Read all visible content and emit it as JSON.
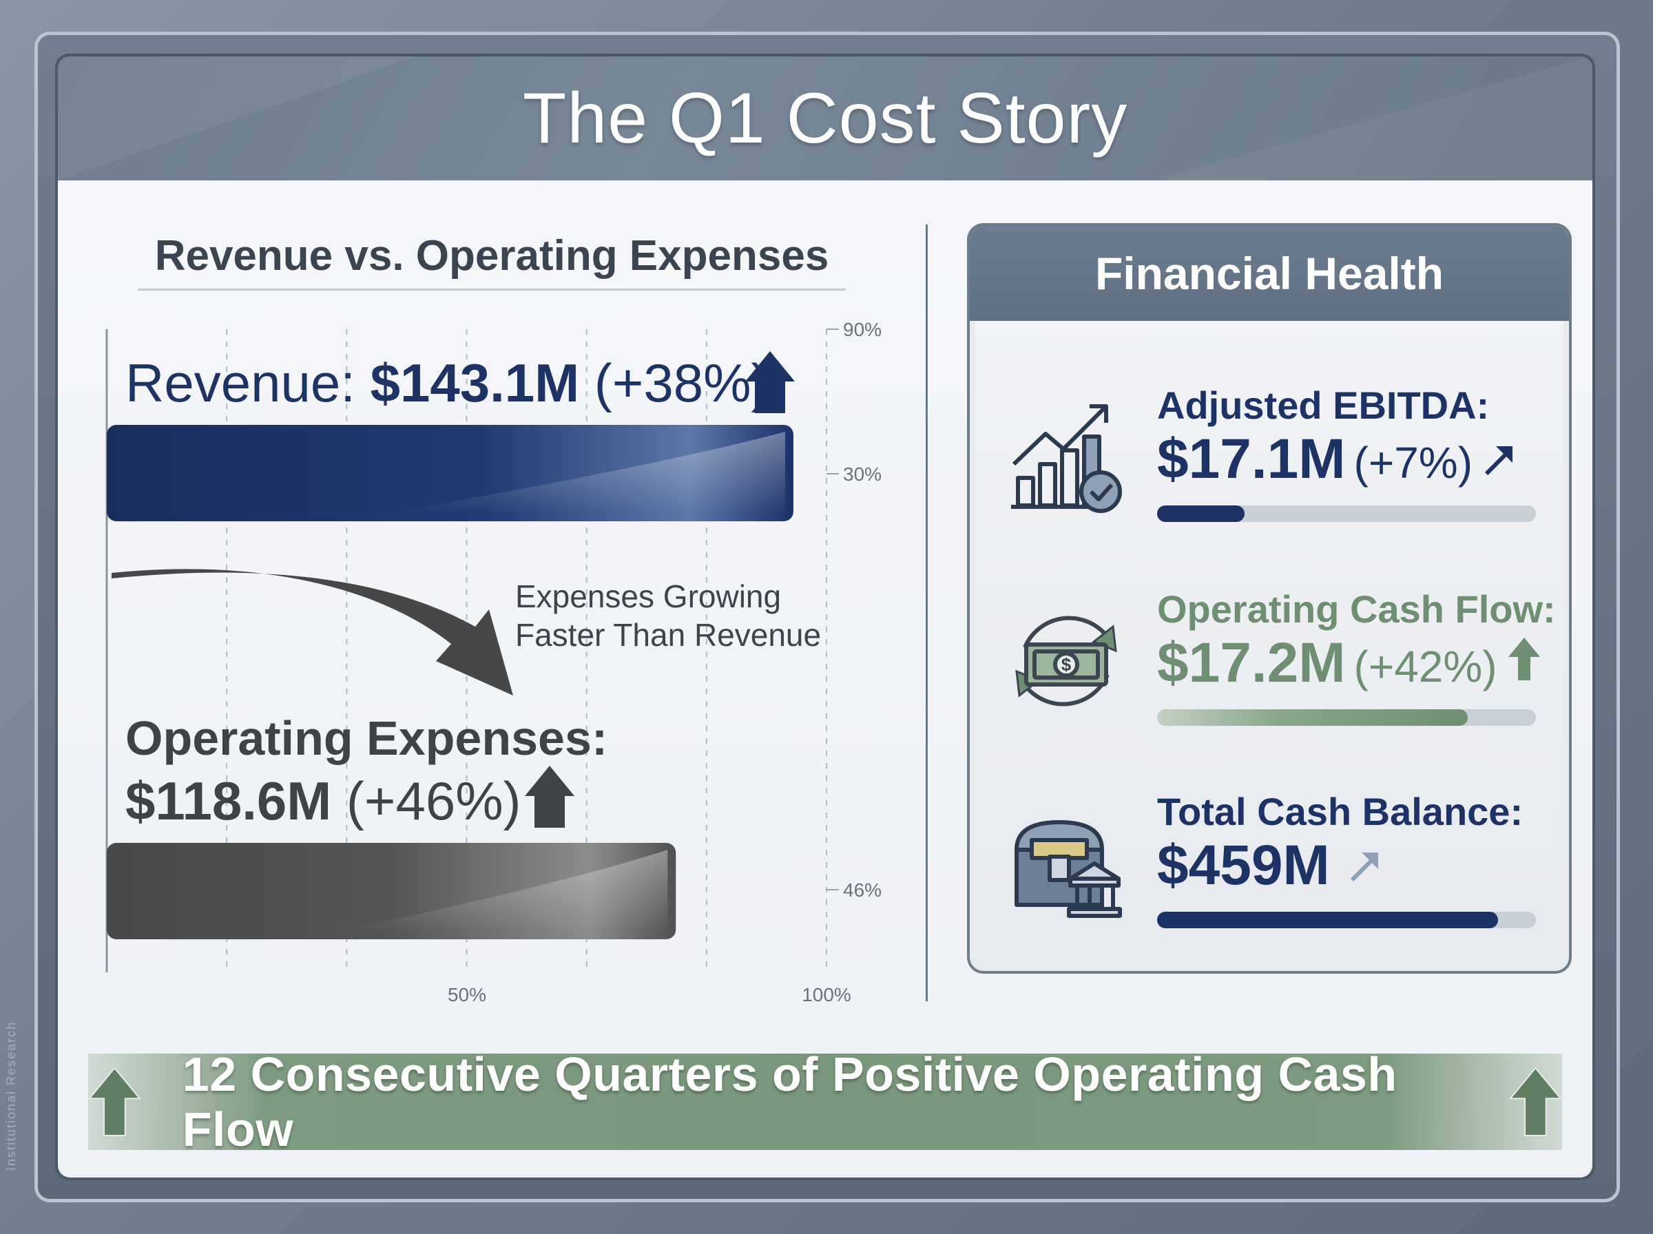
{
  "title": "The Q1 Cost Story",
  "side_label": "Institutional Research",
  "chart_data": {
    "type": "bar",
    "orientation": "horizontal",
    "title": "Revenue vs. Operating Expenses",
    "categories": [
      "Revenue",
      "Operating Expenses"
    ],
    "series": [
      {
        "values": [
          143.1,
          118.6
        ]
      }
    ],
    "bar_labels": [
      {
        "label": "Revenue:",
        "value": "$143.1M",
        "change": "(+38%)",
        "trend": "up"
      },
      {
        "label": "Operating Expenses:",
        "value": "$118.6M",
        "change": "(+46%)",
        "trend": "up"
      }
    ],
    "xlim": [
      0,
      150
    ],
    "x_tick_labels": [
      "50%",
      "100%"
    ],
    "right_tick_labels": [
      "90%",
      "30%",
      "46%"
    ],
    "annotation": [
      "Expenses Growing",
      "Faster Than Revenue"
    ],
    "grid": true,
    "colors": {
      "revenue": "#1d3366",
      "expenses": "#4f4f4f",
      "arrow": "#4a4a4a"
    }
  },
  "financial_health": {
    "title": "Financial Health",
    "metrics": [
      {
        "icon": "bar-chart-check-icon",
        "label": "Adjusted EBITDA:",
        "value": "$17.1M",
        "change": "(+7%)",
        "trend": "up-right",
        "progress": 0.23,
        "color": "#1d3366"
      },
      {
        "icon": "cash-cycle-icon",
        "label": "Operating Cash Flow:",
        "value": "$17.2M",
        "change": "(+42%)",
        "trend": "up",
        "progress": 0.82,
        "color": "#6f8f72"
      },
      {
        "icon": "treasure-chest-bank-icon",
        "label": "Total Cash Balance:",
        "value": "$459M",
        "change": "",
        "trend": "up-right",
        "progress": 0.9,
        "color": "#1d3366"
      }
    ]
  },
  "banner": {
    "text": "12 Consecutive Quarters of Positive Operating Cash Flow",
    "icon": "up-arrow-icon"
  }
}
